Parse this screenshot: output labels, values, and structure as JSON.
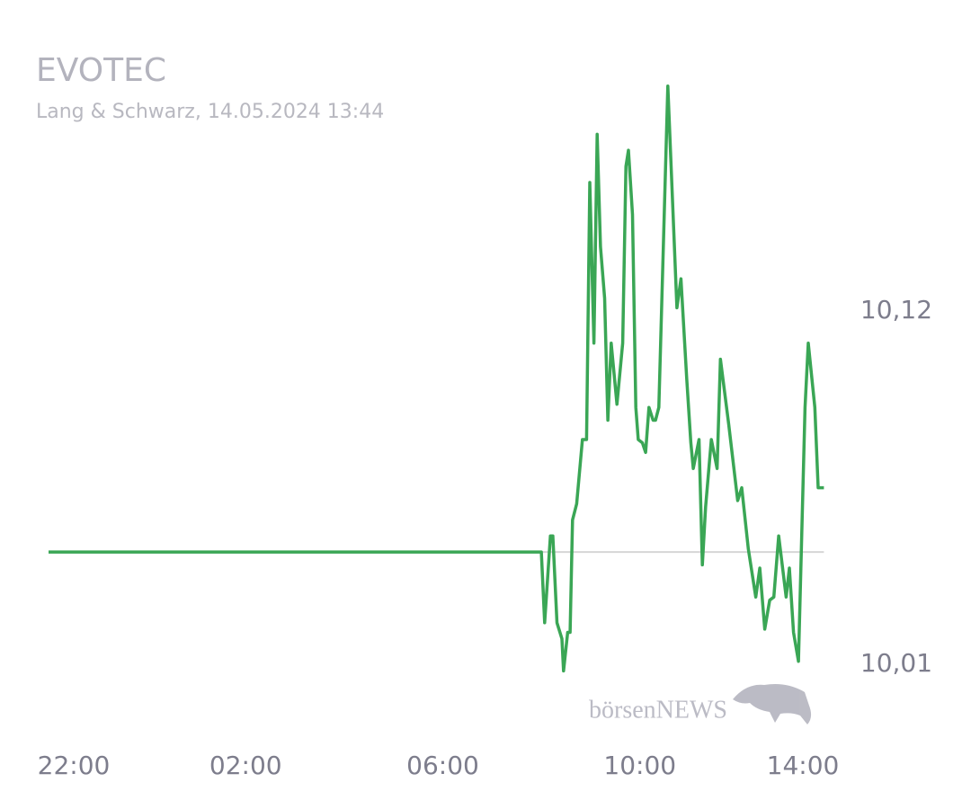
{
  "chart_data": {
    "type": "line",
    "title": "EVOTEC",
    "subtitle": "Lang & Schwarz, 14.05.2024 13:44",
    "watermark": "börsenNEWS",
    "color": "#3aa655",
    "reference_value": 10.045,
    "x": [
      "22:00",
      "08:00",
      "08:04",
      "08:11",
      "08:14",
      "08:19",
      "08:25",
      "08:27",
      "08:32",
      "08:35",
      "08:38",
      "08:43",
      "08:50",
      "08:55",
      "08:59",
      "09:04",
      "09:08",
      "09:12",
      "09:17",
      "09:21",
      "09:25",
      "09:32",
      "09:39",
      "09:43",
      "09:46",
      "09:51",
      "09:55",
      "09:58",
      "10:03",
      "10:07",
      "10:11",
      "10:16",
      "10:19",
      "10:23",
      "10:34",
      "10:45",
      "10:50",
      "10:57",
      "11:02",
      "11:05",
      "11:12",
      "11:16",
      "11:20",
      "11:27",
      "11:34",
      "11:38",
      "11:48",
      "11:59",
      "12:04",
      "12:12",
      "12:21",
      "12:26",
      "12:32",
      "12:38",
      "12:43",
      "12:49",
      "12:58",
      "13:02",
      "13:07",
      "13:13",
      "13:21",
      "13:25",
      "13:33",
      "13:37",
      "13:44"
    ],
    "values": [
      10.045,
      10.045,
      10.023,
      10.05,
      10.05,
      10.023,
      10.018,
      10.008,
      10.02,
      10.02,
      10.055,
      10.06,
      10.08,
      10.08,
      10.16,
      10.11,
      10.175,
      10.14,
      10.124,
      10.086,
      10.11,
      10.091,
      10.11,
      10.165,
      10.17,
      10.15,
      10.09,
      10.08,
      10.079,
      10.076,
      10.09,
      10.086,
      10.086,
      10.09,
      10.19,
      10.121,
      10.13,
      10.099,
      10.079,
      10.071,
      10.08,
      10.041,
      10.059,
      10.08,
      10.071,
      10.105,
      10.085,
      10.061,
      10.065,
      10.046,
      10.031,
      10.04,
      10.021,
      10.03,
      10.031,
      10.05,
      10.031,
      10.04,
      10.02,
      10.011,
      10.09,
      10.11,
      10.09,
      10.065,
      10.065
    ],
    "xlim": [
      "22:00",
      "14:00"
    ],
    "xticks": [
      "22:00",
      "02:00",
      "06:00",
      "10:00",
      "14:00"
    ],
    "ylim": [
      9.993,
      10.2
    ],
    "yticks": [
      {
        "value": 10.01,
        "label": "10,01"
      },
      {
        "value": 10.12,
        "label": "10,12"
      }
    ]
  }
}
